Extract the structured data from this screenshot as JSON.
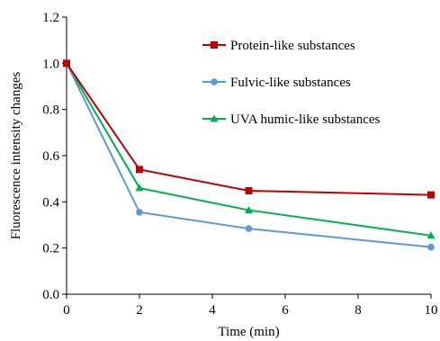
{
  "chart_data": {
    "type": "line",
    "title": "",
    "xlabel": "Time (min)",
    "ylabel": "Fluorescence intensity changes",
    "xlim": [
      0,
      10
    ],
    "ylim": [
      0,
      1.2
    ],
    "xticks": [
      0,
      2,
      4,
      6,
      8,
      10
    ],
    "yticks": [
      0.0,
      0.2,
      0.4,
      0.6,
      0.8,
      1.0,
      1.2
    ],
    "ytick_labels": [
      "0.0",
      "0.2",
      "0.4",
      "0.6",
      "0.8",
      "1.0",
      "1.2"
    ],
    "xtick_labels": [
      "0",
      "2",
      "4",
      "6",
      "8",
      "10"
    ],
    "grid": false,
    "legend": "top-right",
    "series": [
      {
        "name": "Protein-like substances",
        "color": "#c00000",
        "marker": "square",
        "x": [
          0,
          2,
          5,
          10
        ],
        "y": [
          1.0,
          0.54,
          0.448,
          0.43
        ]
      },
      {
        "name": "Fulvic-like substances",
        "color": "#5b9bd5",
        "marker": "circle",
        "x": [
          0,
          2,
          5,
          10
        ],
        "y": [
          1.0,
          0.355,
          0.284,
          0.204
        ]
      },
      {
        "name": "UVA humic-like substances",
        "color": "#00b050",
        "marker": "triangle",
        "x": [
          0,
          2,
          5,
          10
        ],
        "y": [
          1.0,
          0.46,
          0.364,
          0.254
        ]
      }
    ]
  }
}
